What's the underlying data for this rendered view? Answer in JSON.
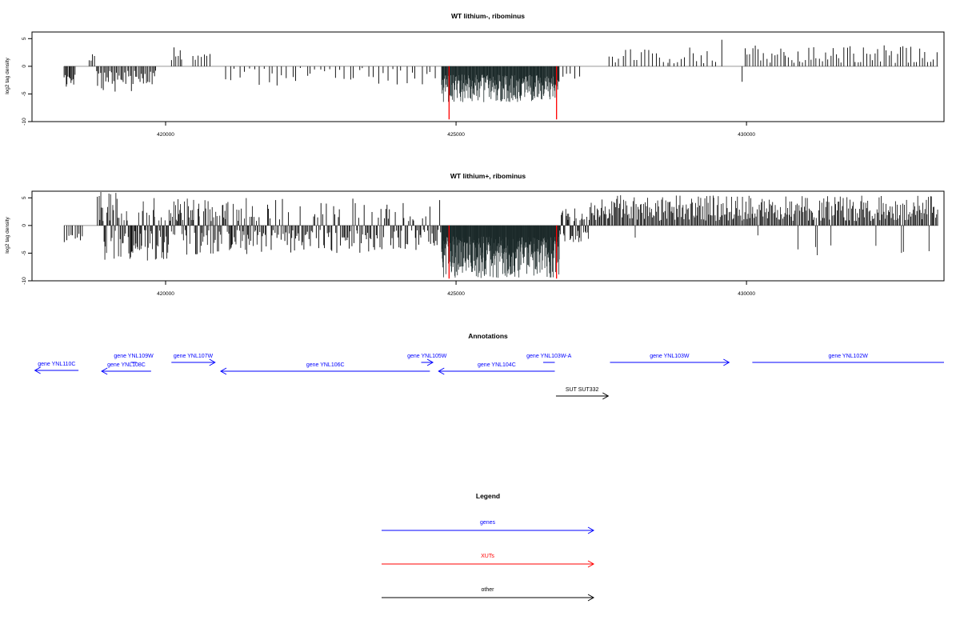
{
  "colors": {
    "axis": "#000000",
    "baseline": "#999999",
    "data": "#000000",
    "data_dense": "#1c2a2a",
    "marker": "#ff0000",
    "genes": "#0000ff",
    "xuts": "#ff0000",
    "other": "#000000"
  },
  "chart_data": [
    {
      "type": "bar",
      "title": "WT lithium-, ribominus",
      "ylabel": "log2 tag density",
      "xlabel": "",
      "xlim": [
        417700,
        433400
      ],
      "ylim": [
        -10,
        6.2
      ],
      "xticks": [
        420000,
        425000,
        430000
      ],
      "xtick_labels": [
        "420000",
        "425000",
        "430000"
      ],
      "yticks": [
        5,
        0,
        -5,
        -10
      ],
      "ytick_labels": [
        "5",
        "0",
        "-5",
        "-10"
      ],
      "grid": false,
      "markers": [
        424880,
        426730
      ],
      "segments": [
        {
          "x0": 418250,
          "x1": 418450,
          "mode": "neg",
          "n": 12,
          "min": 1.5,
          "max": 4.2
        },
        {
          "x0": 418680,
          "x1": 418790,
          "mode": "pos",
          "n": 4,
          "min": 1.0,
          "max": 2.3
        },
        {
          "x0": 418800,
          "x1": 419850,
          "mode": "neg",
          "n": 45,
          "min": 0.8,
          "max": 4.6
        },
        {
          "x0": 420100,
          "x1": 420300,
          "mode": "pos",
          "n": 6,
          "min": 1.0,
          "max": 3.7
        },
        {
          "x0": 420450,
          "x1": 420800,
          "mode": "pos",
          "n": 7,
          "min": 1.0,
          "max": 3.2
        },
        {
          "x0": 421000,
          "x1": 424700,
          "mode": "neg",
          "n": 45,
          "min": 0.3,
          "max": 3.5
        },
        {
          "x0": 424750,
          "x1": 426780,
          "mode": "dense_neg",
          "n": 260,
          "min": 1.5,
          "max": 6.5
        },
        {
          "x0": 426800,
          "x1": 427200,
          "mode": "neg",
          "n": 5,
          "min": 0.5,
          "max": 2.5
        },
        {
          "x0": 427600,
          "x1": 429500,
          "mode": "pos",
          "n": 30,
          "min": 0.5,
          "max": 3.5
        },
        {
          "x0": 429550,
          "x1": 429600,
          "mode": "pos",
          "n": 1,
          "min": 4.8,
          "max": 4.8
        },
        {
          "x0": 429900,
          "x1": 429950,
          "mode": "neg",
          "n": 1,
          "min": 2.8,
          "max": 2.8
        },
        {
          "x0": 429950,
          "x1": 433300,
          "mode": "pos",
          "n": 70,
          "min": 0.6,
          "max": 3.8
        }
      ],
      "seed": 11
    },
    {
      "type": "bar",
      "title": "WT lithium+, ribominus",
      "ylabel": "log2 tag density",
      "xlabel": "",
      "xlim": [
        417700,
        433400
      ],
      "ylim": [
        -10,
        6.2
      ],
      "xticks": [
        420000,
        425000,
        430000
      ],
      "xtick_labels": [
        "420000",
        "425000",
        "430000"
      ],
      "yticks": [
        5,
        0,
        -5,
        -10
      ],
      "ytick_labels": [
        "5",
        "0",
        "-5",
        "-10"
      ],
      "grid": false,
      "markers": [
        424880,
        426730
      ],
      "segments": [
        {
          "x0": 418250,
          "x1": 418600,
          "mode": "neg",
          "n": 10,
          "min": 1.5,
          "max": 3.2
        },
        {
          "x0": 418800,
          "x1": 418850,
          "mode": "pos",
          "n": 1,
          "min": 5.2,
          "max": 5.2
        },
        {
          "x0": 418850,
          "x1": 420100,
          "mode": "mixed",
          "n": 90,
          "min": 0.8,
          "max": 6.5
        },
        {
          "x0": 420100,
          "x1": 421600,
          "mode": "mixed",
          "n": 110,
          "min": 0.8,
          "max": 5.4
        },
        {
          "x0": 421600,
          "x1": 424750,
          "mode": "neg_pos",
          "n": 150,
          "min": 0.8,
          "max": 5.0
        },
        {
          "x0": 424750,
          "x1": 426780,
          "mode": "dense_neg",
          "n": 330,
          "min": 2.0,
          "max": 9.5
        },
        {
          "x0": 426780,
          "x1": 427300,
          "mode": "mixed",
          "n": 40,
          "min": 0.8,
          "max": 3.2
        },
        {
          "x0": 427300,
          "x1": 433300,
          "mode": "dense_pos",
          "n": 340,
          "min": 0.8,
          "max": 5.5
        }
      ],
      "seed": 29
    }
  ],
  "annotations": {
    "title": "Annotations",
    "xlim": [
      417700,
      433400
    ],
    "items": [
      {
        "label": "gene YNL110C",
        "x0": 417750,
        "x1": 418500,
        "dir": "left",
        "row": 2,
        "kind": "genes"
      },
      {
        "label": "gene YNL109W",
        "x0": 419400,
        "x1": 419500,
        "dir": "none",
        "row": 0,
        "kind": "genes"
      },
      {
        "label": "gene YNL108C",
        "x0": 418900,
        "x1": 419750,
        "dir": "left",
        "row": 1,
        "kind": "genes"
      },
      {
        "label": "gene YNL107W",
        "x0": 420100,
        "x1": 420850,
        "dir": "right",
        "row": 0,
        "kind": "genes"
      },
      {
        "label": "gene YNL106C",
        "x0": 420950,
        "x1": 424550,
        "dir": "left",
        "row": 1,
        "kind": "genes"
      },
      {
        "label": "gene YNL105W",
        "x0": 424400,
        "x1": 424600,
        "dir": "right",
        "row": 0,
        "kind": "genes"
      },
      {
        "label": "gene YNL104C",
        "x0": 424700,
        "x1": 426700,
        "dir": "left",
        "row": 1,
        "kind": "genes"
      },
      {
        "label": "gene YNL103W-A",
        "x0": 426500,
        "x1": 426700,
        "dir": "none",
        "row": 0,
        "kind": "genes"
      },
      {
        "label": "gene YNL103W",
        "x0": 427650,
        "x1": 429700,
        "dir": "right",
        "row": 0,
        "kind": "genes"
      },
      {
        "label": "gene YNL102W",
        "x0": 430100,
        "x1": 433400,
        "dir": "none",
        "row": 0,
        "kind": "genes"
      },
      {
        "label": "SUT SUT332",
        "x0": 426720,
        "x1": 427620,
        "dir": "right",
        "row": 3,
        "kind": "other"
      }
    ]
  },
  "legend": {
    "title": "Legend",
    "items": [
      {
        "label": "genes",
        "kind": "genes"
      },
      {
        "label": "XUTs",
        "kind": "xuts"
      },
      {
        "label": "other",
        "kind": "other"
      }
    ]
  }
}
